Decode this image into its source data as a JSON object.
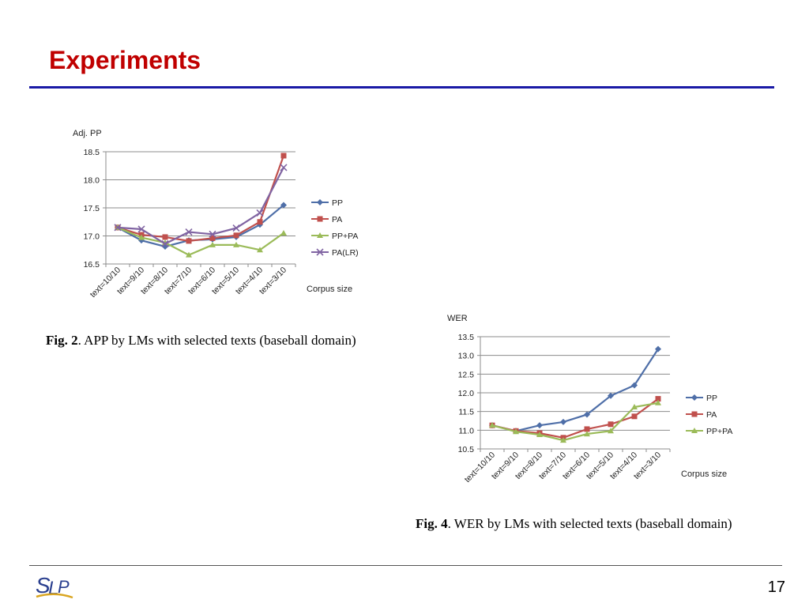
{
  "slide": {
    "title": "Experiments",
    "page_number": "17"
  },
  "logo": {
    "text": "SLP"
  },
  "captions": [
    {
      "label": "Fig. 2",
      "text": ". APP by LMs with selected texts (baseball domain)"
    },
    {
      "label": "Fig. 4",
      "text": ". WER by LMs with selected texts (baseball domain)"
    }
  ],
  "chart_data": [
    {
      "type": "line",
      "ylabel": "Adj. PP",
      "xlabel": "Corpus size",
      "ylim": [
        16.5,
        18.5
      ],
      "yticks": [
        "18.5",
        "18.0",
        "17.5",
        "17.0",
        "16.5"
      ],
      "grid": true,
      "legend_position": "right",
      "categories": [
        "text=10/10",
        "text=9/10",
        "text=8/10",
        "text=7/10",
        "text=6/10",
        "text=5/10",
        "text=4/10",
        "text=3/10"
      ],
      "series": [
        {
          "name": "PP",
          "color": "#4f6fa8",
          "marker": "diamond",
          "values": [
            17.15,
            16.92,
            16.81,
            16.92,
            16.94,
            16.98,
            17.2,
            17.55
          ]
        },
        {
          "name": "PA",
          "color": "#c0504d",
          "marker": "square",
          "values": [
            17.15,
            17.02,
            16.98,
            16.91,
            16.96,
            17.01,
            17.25,
            18.43
          ]
        },
        {
          "name": "PP+PA",
          "color": "#9bbb59",
          "marker": "triangle",
          "values": [
            17.15,
            16.97,
            16.88,
            16.66,
            16.84,
            16.84,
            16.75,
            17.05
          ]
        },
        {
          "name": "PA(LR)",
          "color": "#8064a2",
          "marker": "x",
          "values": [
            17.15,
            17.12,
            16.86,
            17.07,
            17.03,
            17.14,
            17.41,
            18.22
          ]
        }
      ]
    },
    {
      "type": "line",
      "ylabel": "WER",
      "xlabel": "Corpus size",
      "ylim": [
        10.5,
        13.5
      ],
      "yticks": [
        "13.5",
        "13.0",
        "12.5",
        "12.0",
        "11.5",
        "11.0",
        "10.5"
      ],
      "grid": true,
      "legend_position": "right",
      "categories": [
        "text=10/10",
        "text=9/10",
        "text=8/10",
        "text=7/10",
        "text=6/10",
        "text=5/10",
        "text=4/10",
        "text=3/10"
      ],
      "series": [
        {
          "name": "PP",
          "color": "#4f6fa8",
          "marker": "diamond",
          "values": [
            11.13,
            10.98,
            11.13,
            11.22,
            11.42,
            11.92,
            12.2,
            13.17
          ]
        },
        {
          "name": "PA",
          "color": "#c0504d",
          "marker": "square",
          "values": [
            11.13,
            10.98,
            10.92,
            10.8,
            11.03,
            11.16,
            11.37,
            11.84
          ]
        },
        {
          "name": "PP+PA",
          "color": "#9bbb59",
          "marker": "triangle",
          "values": [
            11.13,
            10.96,
            10.88,
            10.73,
            10.9,
            10.98,
            11.62,
            11.73
          ]
        }
      ]
    }
  ]
}
